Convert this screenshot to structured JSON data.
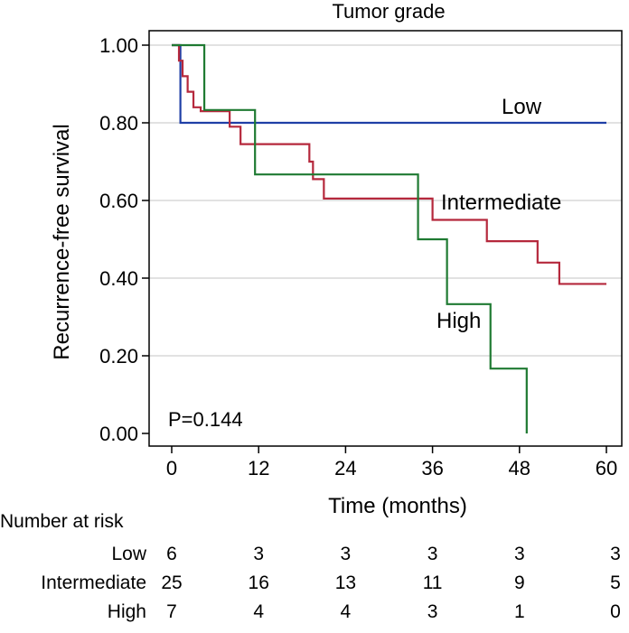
{
  "chart_data": {
    "type": "line",
    "title": "Tumor grade",
    "xlabel": "Time (months)",
    "ylabel": "Recurrence-free survival",
    "xlim": [
      0,
      60
    ],
    "ylim": [
      0,
      1
    ],
    "x_ticks": [
      0,
      12,
      24,
      36,
      48,
      60
    ],
    "x_tick_labels": [
      "0",
      "12",
      "24",
      "36",
      "48",
      "60"
    ],
    "y_ticks": [
      0,
      0.2,
      0.4,
      0.6,
      0.8,
      1.0
    ],
    "y_tick_labels": [
      "0.00",
      "0.20",
      "0.40",
      "0.60",
      "0.80",
      "1.00"
    ],
    "grid": "horizontal",
    "legend": "none",
    "annotation": "P=0.144",
    "series": [
      {
        "name": "Low",
        "color": "#1f3fa6",
        "step": true,
        "x": [
          0,
          1.2,
          60
        ],
        "y": [
          1.0,
          0.8,
          0.8
        ]
      },
      {
        "name": "Intermediate",
        "color": "#b5283c",
        "step": true,
        "x": [
          0,
          1.0,
          1.5,
          2.2,
          3.0,
          4.0,
          8.0,
          9.5,
          19.0,
          19.5,
          21.0,
          36.0,
          43.5,
          50.5,
          53.5,
          60.0
        ],
        "y": [
          1.0,
          0.96,
          0.92,
          0.88,
          0.84,
          0.83,
          0.79,
          0.745,
          0.7,
          0.655,
          0.605,
          0.55,
          0.495,
          0.44,
          0.385,
          0.385
        ]
      },
      {
        "name": "High",
        "color": "#1f7a32",
        "step": true,
        "x": [
          0,
          4.5,
          11.5,
          34.0,
          38.0,
          44.0,
          49.0
        ],
        "y": [
          1.0,
          0.833,
          0.667,
          0.5,
          0.333,
          0.167,
          0.0
        ]
      }
    ],
    "risk_table": {
      "title": "Number at risk",
      "times": [
        0,
        12,
        24,
        36,
        48,
        60
      ],
      "rows": [
        {
          "label": "Low",
          "counts": [
            "6",
            "3",
            "3",
            "3",
            "3",
            "3"
          ]
        },
        {
          "label": "Intermediate",
          "counts": [
            "25",
            "16",
            "13",
            "11",
            "9",
            "5"
          ]
        },
        {
          "label": "High",
          "counts": [
            "7",
            "4",
            "4",
            "3",
            "1",
            "0"
          ]
        }
      ]
    }
  }
}
